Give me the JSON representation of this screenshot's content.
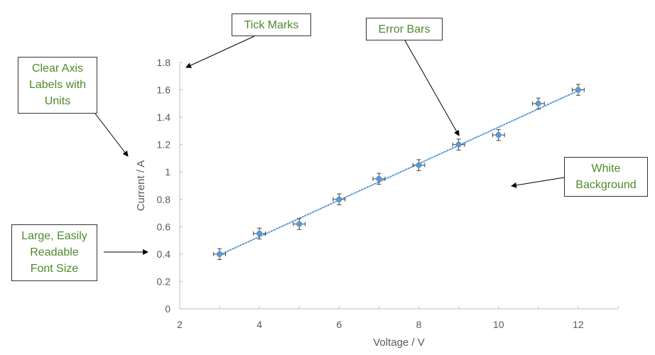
{
  "chart_data": {
    "type": "scatter",
    "xlabel": "Voltage / V",
    "ylabel": "Current / A",
    "xlim": [
      2,
      13
    ],
    "ylim": [
      0,
      1.8
    ],
    "xticks": [
      "2",
      "4",
      "6",
      "8",
      "10",
      "12"
    ],
    "yticks": [
      "0",
      "0.2",
      "0.4",
      "0.6",
      "0.8",
      "1",
      "1.2",
      "1.4",
      "1.6",
      "1.8"
    ],
    "grid": false,
    "series": [
      {
        "x": [
          3,
          4,
          5,
          6,
          7,
          8,
          9,
          10,
          11,
          12
        ],
        "y": [
          0.4,
          0.55,
          0.62,
          0.8,
          0.95,
          1.05,
          1.2,
          1.27,
          1.5,
          1.6
        ],
        "x_error": 0.15,
        "y_error": 0.04,
        "color": "#5b9bd5",
        "trendline": "linear"
      }
    ]
  },
  "annotations": [
    {
      "id": "tick-marks",
      "lines": [
        "Tick Marks"
      ]
    },
    {
      "id": "error-bars",
      "lines": [
        "Error Bars"
      ]
    },
    {
      "id": "axis-labels",
      "lines": [
        "Clear Axis",
        "Labels with",
        "Units"
      ]
    },
    {
      "id": "white-background",
      "lines": [
        "White",
        "Background"
      ]
    },
    {
      "id": "font-size",
      "lines": [
        "Large, Easily",
        "Readable",
        "Font Size"
      ]
    }
  ],
  "colors": {
    "annotation_text": "#4e8a2c",
    "axis": "#bfbfbf",
    "tick_label": "#595959",
    "error_bar": "#404040"
  }
}
